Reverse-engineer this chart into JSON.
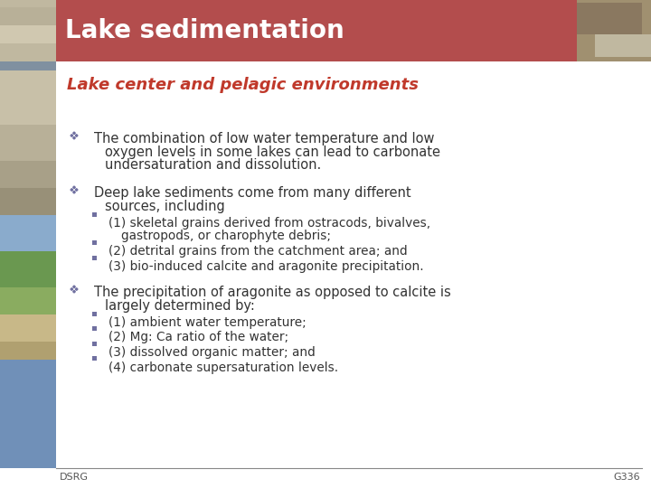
{
  "title": "Lake sedimentation",
  "title_bg_color": "#b34d4d",
  "title_text_color": "#ffffff",
  "subtitle": "Lake center and pelagic environments",
  "subtitle_color": "#c0392b",
  "bg_color": "#ffffff",
  "footer_left": "DSRG",
  "footer_right": "G336",
  "footer_color": "#555555",
  "bullet1_line1": "The combination of low water temperature and low",
  "bullet1_line2": "oxygen levels in some lakes can lead to carbonate",
  "bullet1_line3": "undersaturation and dissolution.",
  "bullet2_line1": "Deep lake sediments come from many different",
  "bullet2_line2": "sources, including",
  "sub2_1_line1": "(1) skeletal grains derived from ostracods, bivalves,",
  "sub2_1_line2": "gastropods, or charophyte debris;",
  "sub2_2": "(2) detrital grains from the catchment area; and",
  "sub2_3": "(3) bio-induced calcite and aragonite precipitation.",
  "bullet3_line1": "The precipitation of aragonite as opposed to calcite is",
  "bullet3_line2": "largely determined by:",
  "sub3_1": "(1) ambient water temperature;",
  "sub3_2": "(2) Mg: Ca ratio of the water;",
  "sub3_3": "(3) dissolved organic matter; and",
  "sub3_4": "(4) carbonate supersaturation levels.",
  "text_color": "#333333",
  "title_bar_height": 68,
  "left_bar_width": 62,
  "left_bar_top_color": "#b8c8d8",
  "left_photo1_color_a": "#d8cdb8",
  "left_photo1_color_b": "#a89878",
  "left_photo2_color_a": "#7a9858",
  "left_photo2_color_b": "#8aaa68",
  "left_photo2_color_c": "#c8b890",
  "right_photo_color_a": "#9a8870",
  "right_photo_color_b": "#c8b8a0"
}
